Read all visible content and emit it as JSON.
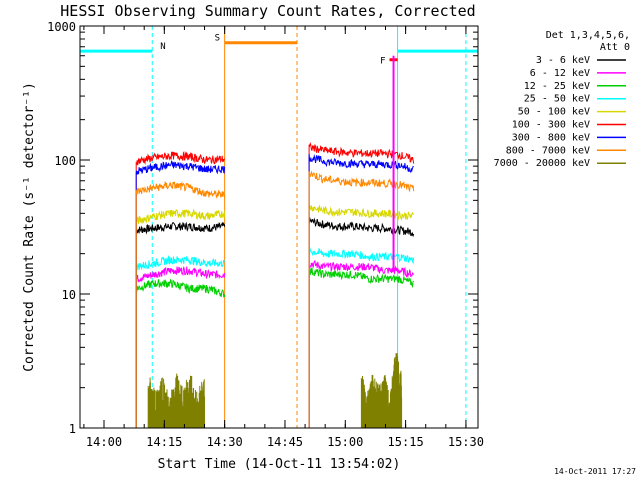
{
  "chart_data": {
    "type": "line",
    "title": "HESSI Observing Summary Count Rates, Corrected",
    "xlabel": "Start Time (14-Oct-11 13:54:02)",
    "ylabel": "Corrected Count Rate (s⁻¹ detector⁻¹)",
    "y_scale": "log",
    "ylim": [
      1,
      1000
    ],
    "xlim": [
      "13:54:02",
      "15:33:00"
    ],
    "x_ticks": [
      "14:00",
      "14:15",
      "14:30",
      "14:45",
      "15:00",
      "15:15",
      "15:30"
    ],
    "y_ticks": [
      "1",
      "10",
      "100",
      "1000"
    ],
    "legend_title": "Det 1,3,4,5,6,\nAtt 0",
    "legend_position": "right",
    "timestamp": "14-Oct-2011 17:27",
    "series": [
      {
        "name": "3 - 6 keV",
        "color": "#000000",
        "segments": [
          {
            "start": "14:08",
            "end": "14:30",
            "values": [
              30,
              31,
              32,
              32,
              31,
              32
            ]
          },
          {
            "start": "14:51",
            "end": "15:17",
            "values": [
              35,
              33,
              32,
              32,
              31,
              31,
              30,
              29
            ]
          }
        ]
      },
      {
        "name": "6 - 12 keV",
        "color": "#ff00ff",
        "segments": [
          {
            "start": "14:08",
            "end": "14:30",
            "values": [
              13,
              14,
              15,
              15,
              14,
              14
            ]
          },
          {
            "start": "14:51",
            "end": "15:17",
            "values": [
              17,
              16,
              16,
              16,
              16,
              15,
              15,
              14
            ]
          }
        ]
      },
      {
        "name": "12 - 25 keV",
        "color": "#00d000",
        "segments": [
          {
            "start": "14:08",
            "end": "14:30",
            "values": [
              11,
              12,
              12,
              11,
              11,
              10
            ]
          },
          {
            "start": "14:51",
            "end": "15:17",
            "values": [
              15,
              14,
              14,
              14,
              13,
              13,
              13,
              12
            ]
          }
        ]
      },
      {
        "name": "25 - 50 keV",
        "color": "#00ffff",
        "segments": [
          {
            "start": "14:08",
            "end": "14:30",
            "values": [
              16,
              17,
              18,
              18,
              17,
              17
            ]
          },
          {
            "start": "14:51",
            "end": "15:17",
            "values": [
              21,
              20,
              20,
              20,
              19,
              19,
              19,
              18
            ]
          }
        ]
      },
      {
        "name": "50 - 100 keV",
        "color": "#d8d800",
        "segments": [
          {
            "start": "14:08",
            "end": "14:30",
            "values": [
              35,
              38,
              40,
              40,
              38,
              40
            ]
          },
          {
            "start": "14:51",
            "end": "15:17",
            "values": [
              45,
              42,
              41,
              41,
              40,
              40,
              39,
              38
            ]
          }
        ]
      },
      {
        "name": "100 - 300 keV",
        "color": "#ff0000",
        "segments": [
          {
            "start": "14:08",
            "end": "14:30",
            "values": [
              98,
              104,
              108,
              106,
              100,
              102
            ]
          },
          {
            "start": "14:51",
            "end": "15:17",
            "values": [
              125,
              118,
              115,
              113,
              112,
              112,
              110,
              100
            ]
          }
        ]
      },
      {
        "name": "300 - 800 keV",
        "color": "#0000ff",
        "segments": [
          {
            "start": "14:08",
            "end": "14:30",
            "values": [
              82,
              88,
              92,
              90,
              85,
              86
            ]
          },
          {
            "start": "14:51",
            "end": "15:17",
            "values": [
              105,
              98,
              95,
              94,
              93,
              93,
              92,
              85
            ]
          }
        ]
      },
      {
        "name": "800 - 7000 keV",
        "color": "#ff8800",
        "segments": [
          {
            "start": "14:08",
            "end": "14:30",
            "values": [
              58,
              62,
              65,
              62,
              56,
              55
            ]
          },
          {
            "start": "14:51",
            "end": "15:17",
            "values": [
              80,
              72,
              70,
              68,
              68,
              67,
              66,
              60
            ]
          }
        ]
      },
      {
        "name": "7000 - 20000 keV",
        "color": "#808000",
        "segments": [
          {
            "start": "14:11",
            "end": "14:25",
            "values": [
              2,
              1.5,
              2,
              1.3,
              2,
              1.6,
              2,
              1.4,
              2
            ]
          },
          {
            "start": "15:04",
            "end": "15:14",
            "values": [
              2,
              1.4,
              2,
              1.6,
              2,
              1.3,
              3,
              2
            ]
          }
        ]
      }
    ],
    "annotations": [
      {
        "label": "N",
        "color": "#00ffff",
        "state": "night",
        "intervals": [
          [
            "13:54:02",
            "14:12"
          ],
          [
            "15:13",
            "15:33"
          ]
        ],
        "level": 650
      },
      {
        "label": "S",
        "color": "#ff8800",
        "state": "SAA",
        "intervals": [
          [
            "14:30",
            "14:48"
          ]
        ],
        "level": 750
      },
      {
        "label": "F",
        "color": "#ff0000",
        "state": "flare",
        "intervals": [
          [
            "15:11",
            "15:13"
          ]
        ],
        "level": 560
      }
    ],
    "flare_spike": {
      "time": "15:12",
      "peak": 600,
      "color": "#ff00ff"
    }
  }
}
